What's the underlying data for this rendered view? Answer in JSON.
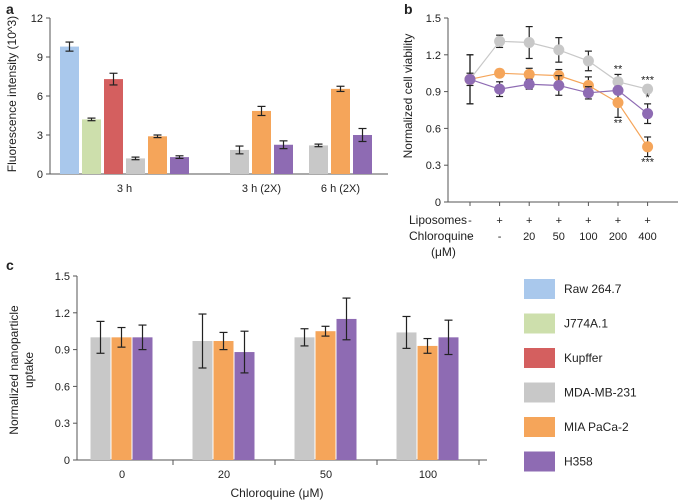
{
  "panel_labels": {
    "a": "a",
    "b": "b",
    "c": "c"
  },
  "colors": {
    "raw": "#a9c8ec",
    "j774": "#cddfac",
    "kupffer": "#d45f5f",
    "mda": "#c8c8c8",
    "mia": "#f5a55a",
    "h358": "#8e6bb3",
    "axis": "#555555",
    "sig_gray": "#9a9a9a",
    "sig_orange": "#f09a3e",
    "sig_purple": "#8e6bb3"
  },
  "legend": [
    {
      "key": "raw",
      "label": "Raw 264.7"
    },
    {
      "key": "j774",
      "label": "J774A.1"
    },
    {
      "key": "kupffer",
      "label": "Kupffer"
    },
    {
      "key": "mda",
      "label": "MDA-MB-231"
    },
    {
      "key": "mia",
      "label": "MIA PaCa-2"
    },
    {
      "key": "h358",
      "label": "H358"
    }
  ],
  "chart_data": [
    {
      "id": "a",
      "type": "bar",
      "ylabel": "Fluorescence intensity (10^3)",
      "ylim": [
        0,
        12
      ],
      "yticks": [
        0,
        3,
        6,
        9,
        12
      ],
      "groups": [
        {
          "label": "3 h",
          "bars": [
            {
              "key": "raw",
              "value": 9.8,
              "err": 0.35
            },
            {
              "key": "j774",
              "value": 4.2,
              "err": 0.1
            },
            {
              "key": "kupffer",
              "value": 7.3,
              "err": 0.45
            },
            {
              "key": "mda",
              "value": 1.2,
              "err": 0.1
            },
            {
              "key": "mia",
              "value": 2.9,
              "err": 0.1
            },
            {
              "key": "h358",
              "value": 1.3,
              "err": 0.1
            }
          ]
        },
        {
          "label": "3 h (2X)",
          "bars": [
            {
              "key": "mda",
              "value": 1.85,
              "err": 0.3
            },
            {
              "key": "mia",
              "value": 4.85,
              "err": 0.35
            },
            {
              "key": "h358",
              "value": 2.25,
              "err": 0.3
            }
          ]
        },
        {
          "label": "6 h (2X)",
          "bars": [
            {
              "key": "mda",
              "value": 2.2,
              "err": 0.1
            },
            {
              "key": "mia",
              "value": 6.55,
              "err": 0.2
            },
            {
              "key": "h358",
              "value": 3.0,
              "err": 0.5
            }
          ]
        }
      ]
    },
    {
      "id": "b",
      "type": "line",
      "ylabel": "Normalized cell viability",
      "ylim": [
        0,
        1.5
      ],
      "yticks": [
        0,
        0.3,
        0.6,
        0.9,
        1.2,
        1.5
      ],
      "ytick_labels": [
        "0",
        "0.3",
        "0.6",
        "0.9",
        "1.2",
        "1.5"
      ],
      "row_labels": [
        "Liposomes",
        "Chloroquine",
        "(μM)"
      ],
      "liposomes": [
        "-",
        "+",
        "+",
        "+",
        "+",
        "+",
        "+"
      ],
      "chloroquine": [
        "-",
        "-",
        "20",
        "50",
        "100",
        "200",
        "400"
      ],
      "series": [
        {
          "key": "mda",
          "values": [
            1.0,
            1.31,
            1.3,
            1.24,
            1.15,
            0.98,
            0.92
          ],
          "errors": [
            0.2,
            0.05,
            0.13,
            0.1,
            0.08,
            0.06,
            0.03
          ],
          "sig": [
            {
              "index": 5,
              "text": "**"
            },
            {
              "index": 6,
              "text": "***"
            }
          ]
        },
        {
          "key": "mia",
          "values": [
            1.0,
            1.05,
            1.04,
            1.03,
            0.95,
            0.81,
            0.45
          ],
          "errors": [
            0.05,
            0.03,
            0.05,
            0.05,
            0.07,
            0.12,
            0.08
          ],
          "sig": [
            {
              "index": 5,
              "text": "**"
            },
            {
              "index": 6,
              "text": "***"
            }
          ]
        },
        {
          "key": "h358",
          "values": [
            1.0,
            0.92,
            0.96,
            0.95,
            0.89,
            0.91,
            0.72
          ],
          "errors": [
            0.2,
            0.06,
            0.04,
            0.08,
            0.05,
            0.03,
            0.08
          ],
          "sig": [
            {
              "index": 6,
              "text": "*"
            }
          ]
        }
      ]
    },
    {
      "id": "c",
      "type": "bar",
      "xlabel": "Chloroquine (μM)",
      "ylabel": "Normalized nanoparticle uptake",
      "ylabel_lines": [
        "Normalized nanoparticle",
        "uptake"
      ],
      "ylim": [
        0,
        1.5
      ],
      "yticks": [
        0,
        0.3,
        0.6,
        0.9,
        1.2,
        1.5
      ],
      "ytick_labels": [
        "0",
        "0.3",
        "0.6",
        "0.9",
        "1.2",
        "1.5"
      ],
      "categories": [
        "0",
        "20",
        "50",
        "100"
      ],
      "series": [
        {
          "key": "mda",
          "values": [
            1.0,
            0.97,
            1.0,
            1.04
          ],
          "errors": [
            0.13,
            0.22,
            0.07,
            0.13
          ]
        },
        {
          "key": "mia",
          "values": [
            1.0,
            0.97,
            1.05,
            0.93
          ],
          "errors": [
            0.08,
            0.07,
            0.04,
            0.06
          ]
        },
        {
          "key": "h358",
          "values": [
            1.0,
            0.88,
            1.15,
            1.0
          ],
          "errors": [
            0.1,
            0.17,
            0.17,
            0.14
          ]
        }
      ]
    }
  ]
}
